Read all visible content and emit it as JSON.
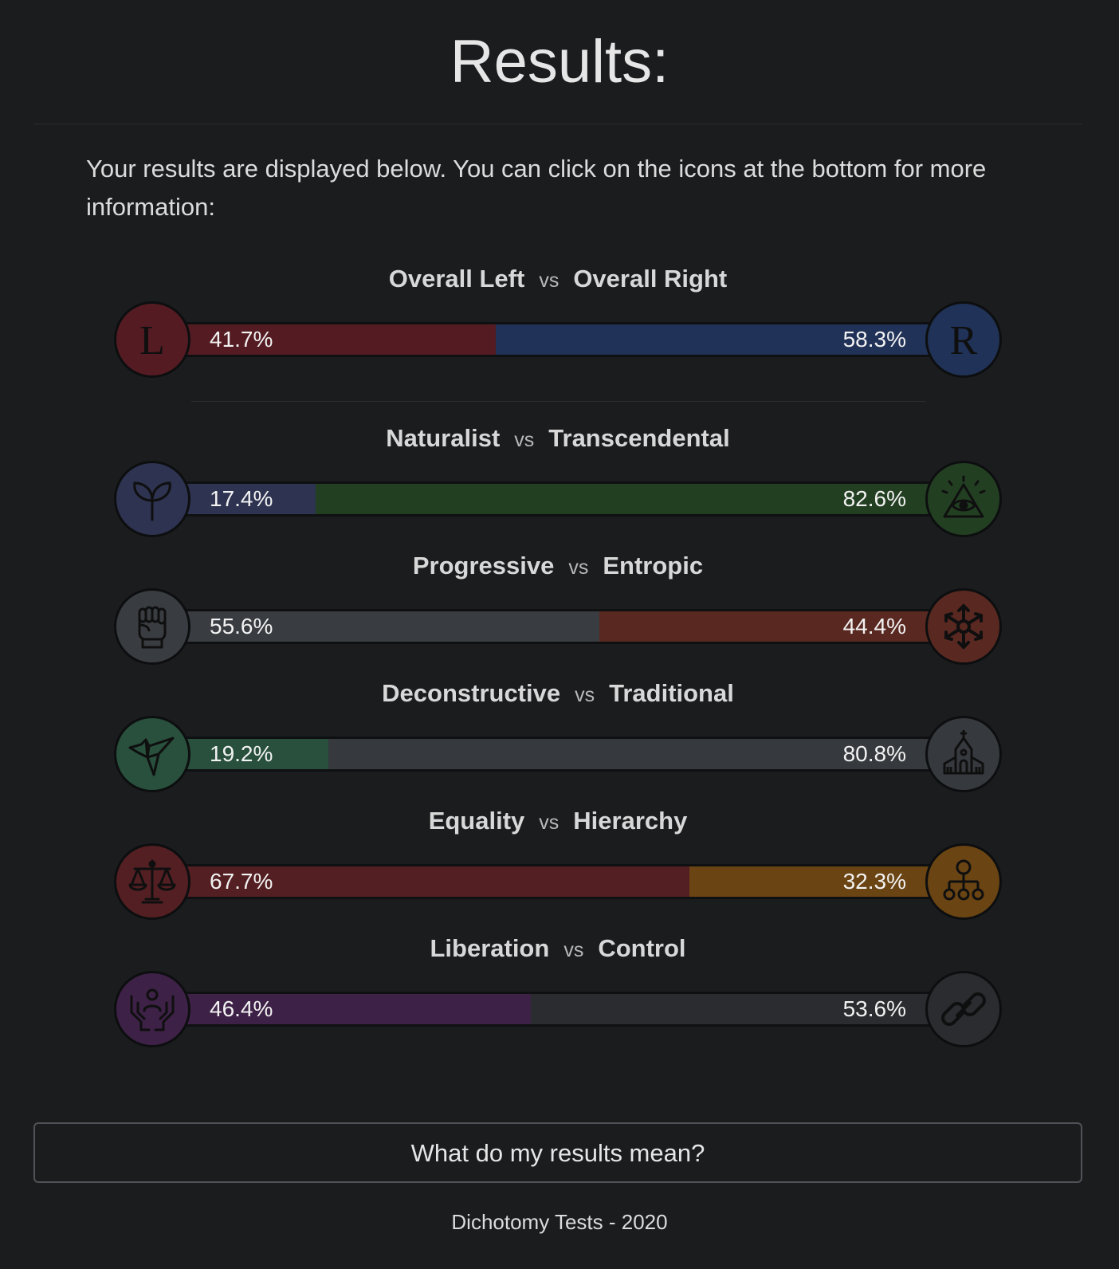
{
  "title": "Results:",
  "intro": "Your results are displayed below. You can click on the icons at the bottom for more information:",
  "vs_label": "vs",
  "axes": [
    {
      "left_label": "Overall Left",
      "right_label": "Overall Right",
      "left_pct": "41.7%",
      "right_pct": "58.3%",
      "left_value": 41.7,
      "left_color": "#541b22",
      "right_color": "#203257",
      "left_icon_bg": "#541b22",
      "right_icon_bg": "#203257",
      "left_icon": "letter-l-icon",
      "right_icon": "letter-r-icon"
    },
    {
      "left_label": "Naturalist",
      "right_label": "Transcendental",
      "left_pct": "17.4%",
      "right_pct": "82.6%",
      "left_value": 17.4,
      "left_color": "#2d3350",
      "right_color": "#233f22",
      "left_icon_bg": "#2d3350",
      "right_icon_bg": "#233f22",
      "left_icon": "sprout-icon",
      "right_icon": "all-seeing-eye-icon"
    },
    {
      "left_label": "Progressive",
      "right_label": "Entropic",
      "left_pct": "55.6%",
      "right_pct": "44.4%",
      "left_value": 55.6,
      "left_color": "#393c40",
      "right_color": "#592921",
      "left_icon_bg": "#393c40",
      "right_icon_bg": "#592921",
      "left_icon": "raised-fist-icon",
      "right_icon": "chaos-star-icon"
    },
    {
      "left_label": "Deconstructive",
      "right_label": "Traditional",
      "left_pct": "19.2%",
      "right_pct": "80.8%",
      "left_value": 19.2,
      "left_color": "#28503d",
      "right_color": "#36393d",
      "left_icon_bg": "#28503d",
      "right_icon_bg": "#36393d",
      "left_icon": "origami-bird-icon",
      "right_icon": "church-icon"
    },
    {
      "left_label": "Equality",
      "right_label": "Hierarchy",
      "left_pct": "67.7%",
      "right_pct": "32.3%",
      "left_value": 67.7,
      "left_color": "#531f22",
      "right_color": "#6a4412",
      "left_icon_bg": "#531f22",
      "right_icon_bg": "#6a4412",
      "left_icon": "scales-icon",
      "right_icon": "hierarchy-tree-icon"
    },
    {
      "left_label": "Liberation",
      "right_label": "Control",
      "left_pct": "46.4%",
      "right_pct": "53.6%",
      "left_value": 46.4,
      "left_color": "#3d2146",
      "right_color": "#2a2c2f",
      "left_icon_bg": "#3d2146",
      "right_icon_bg": "#2a2c2f",
      "left_icon": "open-hands-icon",
      "right_icon": "chain-link-icon"
    }
  ],
  "button_label": "What do my results mean?",
  "footer": "Dichotomy Tests - 2020"
}
